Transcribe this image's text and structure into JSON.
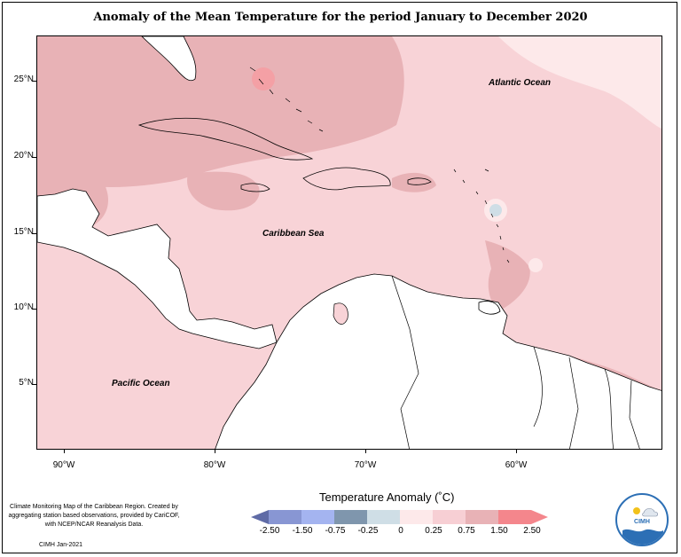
{
  "title": "Anomaly of the Mean Temperature for the period January to December 2020",
  "axes": {
    "y_ticks": [
      "25°N",
      "20°N",
      "15°N",
      "10°N",
      "5°N"
    ],
    "x_ticks": [
      "90°W",
      "80°W",
      "70°W",
      "60°W"
    ]
  },
  "labels": {
    "atlantic": "Atlantic Ocean",
    "caribbean": "Caribbean Sea",
    "pacific": "Pacific Ocean"
  },
  "legend": {
    "title": "Temperature Anomaly (˚C)",
    "ticks": [
      "-2.50",
      "-1.50",
      "-0.75",
      "-0.25",
      "0",
      "0.25",
      "0.75",
      "1.50",
      "2.50"
    ],
    "colors": [
      "#5f6ba6",
      "#8896d3",
      "#a4b4f0",
      "#7f96ad",
      "#cfdee6",
      "#fde9ea",
      "#f7cfd4",
      "#e8b2b6",
      "#f4868c",
      "#f4868c"
    ]
  },
  "credit": {
    "text": "Climate Monitoring Map of the Caribbean Region. Created by aggregating station based observations, provided by CariCOF, with NCEP/NCAR Reanalysis Data.",
    "sub": "CIMH Jan-2021"
  },
  "logo": {
    "text": "CIMH"
  }
}
